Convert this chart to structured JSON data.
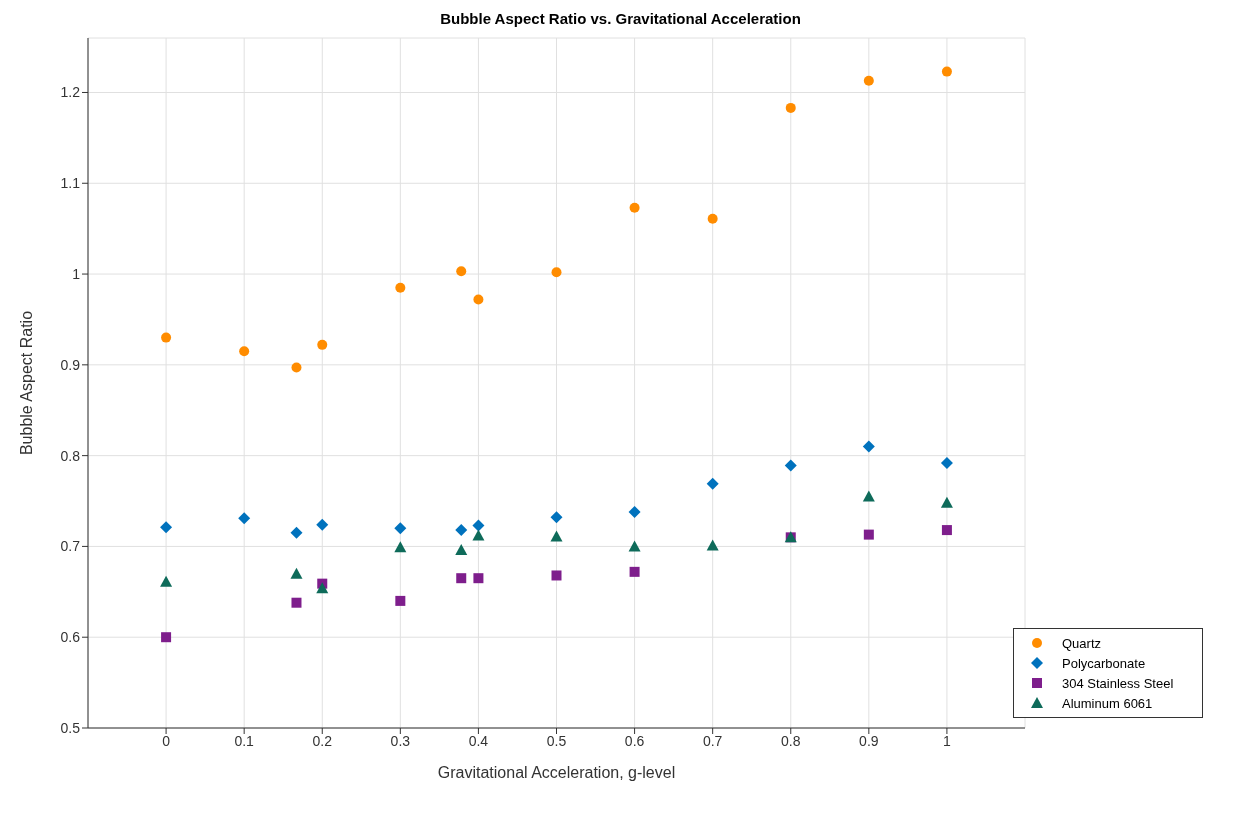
{
  "chart_data": {
    "type": "scatter",
    "title": "Bubble Aspect Ratio vs. Gravitational Acceleration",
    "xlabel": "Gravitational Acceleration, g-level",
    "ylabel": "Bubble Aspect Ratio",
    "xlim": [
      -0.1,
      1.1
    ],
    "xticks": [
      0,
      0.1,
      0.2,
      0.3,
      0.4,
      0.5,
      0.6,
      0.7,
      0.8,
      0.9,
      1
    ],
    "ylim": [
      0.5,
      1.26
    ],
    "yticks": [
      0.5,
      0.6,
      0.7,
      0.8,
      0.9,
      1,
      1.1,
      1.2
    ],
    "grid": true,
    "legend": "bottom right",
    "series": [
      {
        "name": "Quartz",
        "color": "#ff8c00",
        "marker": "circle",
        "x": [
          0,
          0.1,
          0.167,
          0.2,
          0.3,
          0.378,
          0.4,
          0.5,
          0.6,
          0.7,
          0.8,
          0.9,
          1
        ],
        "values": [
          0.93,
          0.915,
          0.897,
          0.922,
          0.985,
          1.003,
          0.972,
          1.002,
          1.073,
          1.061,
          1.183,
          1.213,
          1.223
        ]
      },
      {
        "name": "Polycarbonate",
        "color": "#0072bd",
        "marker": "diamond",
        "x": [
          0,
          0.1,
          0.167,
          0.2,
          0.3,
          0.378,
          0.4,
          0.5,
          0.6,
          0.7,
          0.8,
          0.9,
          1
        ],
        "values": [
          0.721,
          0.731,
          0.715,
          0.724,
          0.72,
          0.718,
          0.723,
          0.732,
          0.738,
          0.769,
          0.789,
          0.81,
          0.792
        ]
      },
      {
        "name": "304 Stainless Steel",
        "color": "#7e1e8c",
        "marker": "square",
        "x": [
          0,
          0.167,
          0.2,
          0.3,
          0.378,
          0.4,
          0.5,
          0.6,
          0.7,
          0.8,
          0.9,
          1
        ],
        "values": [
          0.6,
          0.638,
          0.659,
          0.64,
          0.665,
          0.665,
          0.668,
          0.672,
          null,
          0.71,
          0.713,
          0.718
        ]
      },
      {
        "name": "Aluminum 6061",
        "color": "#0e6b5a",
        "marker": "triangle",
        "x": [
          0,
          0.167,
          0.2,
          0.3,
          0.378,
          0.4,
          0.5,
          0.6,
          0.7,
          0.8,
          0.9,
          1
        ],
        "values": [
          0.661,
          0.67,
          0.654,
          0.699,
          0.696,
          0.712,
          0.711,
          0.7,
          0.701,
          0.71,
          0.755,
          0.748
        ]
      }
    ]
  }
}
